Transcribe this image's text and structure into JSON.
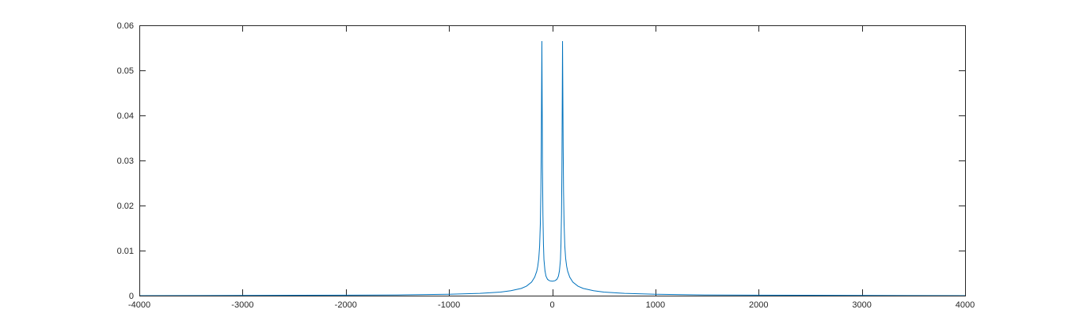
{
  "chart_data": {
    "type": "line",
    "title": "",
    "xlabel": "",
    "ylabel": "",
    "xlim": [
      -4000,
      4000
    ],
    "ylim": [
      0,
      0.06
    ],
    "xticks": [
      -4000,
      -3000,
      -2000,
      -1000,
      0,
      1000,
      2000,
      3000,
      4000
    ],
    "yticks": [
      0,
      0.01,
      0.02,
      0.03,
      0.04,
      0.05,
      0.06
    ],
    "xtick_labels": [
      "-4000",
      "-3000",
      "-2000",
      "-1000",
      "0",
      "1000",
      "2000",
      "3000",
      "4000"
    ],
    "ytick_labels": [
      "0",
      "0.01",
      "0.02",
      "0.03",
      "0.04",
      "0.05",
      "0.06"
    ],
    "grid": false,
    "legend": "none",
    "box": true,
    "series": [
      {
        "color": "#0072bd",
        "points": [
          [
            -4000,
            0
          ],
          [
            -2000,
            0.0001
          ],
          [
            -1500,
            0.00015
          ],
          [
            -1000,
            0.0003
          ],
          [
            -700,
            0.0005
          ],
          [
            -500,
            0.0008
          ],
          [
            -400,
            0.0011
          ],
          [
            -300,
            0.0016
          ],
          [
            -250,
            0.0021
          ],
          [
            -200,
            0.003
          ],
          [
            -170,
            0.0041
          ],
          [
            -150,
            0.0054
          ],
          [
            -140,
            0.0065
          ],
          [
            -130,
            0.0083
          ],
          [
            -122,
            0.011
          ],
          [
            -115,
            0.016
          ],
          [
            -110,
            0.023
          ],
          [
            -106,
            0.033
          ],
          [
            -103,
            0.045
          ],
          [
            -100,
            0.0565
          ],
          [
            -97,
            0.042
          ],
          [
            -94,
            0.028
          ],
          [
            -90,
            0.018
          ],
          [
            -85,
            0.0115
          ],
          [
            -80,
            0.008
          ],
          [
            -70,
            0.0055
          ],
          [
            -60,
            0.0043
          ],
          [
            -45,
            0.0036
          ],
          [
            -25,
            0.0033
          ],
          [
            0,
            0.0032
          ],
          [
            25,
            0.0033
          ],
          [
            45,
            0.0036
          ],
          [
            60,
            0.0043
          ],
          [
            70,
            0.0055
          ],
          [
            80,
            0.008
          ],
          [
            85,
            0.0115
          ],
          [
            90,
            0.018
          ],
          [
            94,
            0.028
          ],
          [
            97,
            0.042
          ],
          [
            100,
            0.0565
          ],
          [
            103,
            0.045
          ],
          [
            106,
            0.033
          ],
          [
            110,
            0.023
          ],
          [
            115,
            0.016
          ],
          [
            122,
            0.011
          ],
          [
            130,
            0.0083
          ],
          [
            140,
            0.0065
          ],
          [
            150,
            0.0054
          ],
          [
            170,
            0.0041
          ],
          [
            200,
            0.003
          ],
          [
            250,
            0.0021
          ],
          [
            300,
            0.0016
          ],
          [
            400,
            0.0011
          ],
          [
            500,
            0.0008
          ],
          [
            700,
            0.0005
          ],
          [
            1000,
            0.0003
          ],
          [
            1500,
            0.00015
          ],
          [
            2000,
            0.0001
          ],
          [
            4000,
            0
          ]
        ]
      }
    ]
  }
}
